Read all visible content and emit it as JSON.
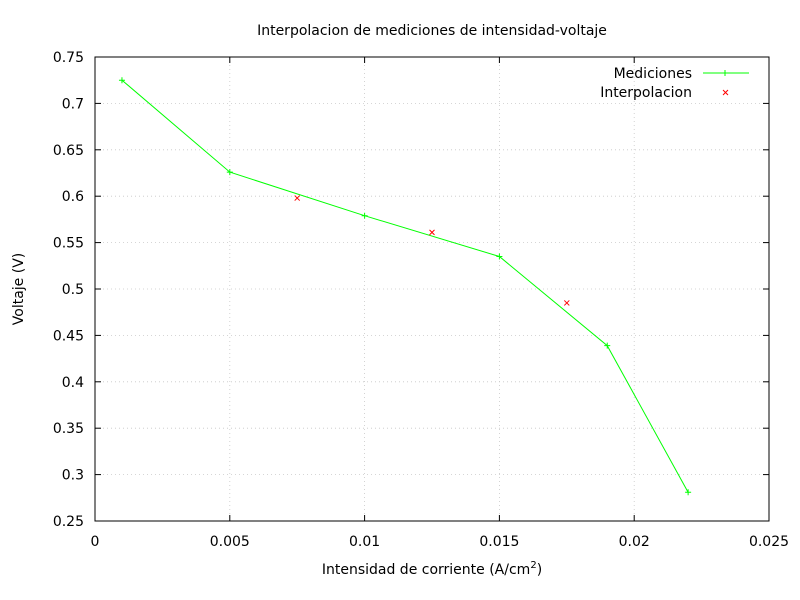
{
  "chart_data": {
    "type": "line",
    "title": "Interpolacion de mediciones de intensidad-voltaje",
    "xlabel": "Intensidad de corriente (A/cm",
    "xlabel_superscript": "2",
    "xlabel_suffix": ")",
    "ylabel": "Voltaje (V)",
    "xlim": [
      0,
      0.025
    ],
    "ylim": [
      0.25,
      0.75
    ],
    "x_ticks": [
      "0",
      "0.005",
      "0.01",
      "0.015",
      "0.02",
      "0.025"
    ],
    "x_tick_values": [
      0,
      0.005,
      0.01,
      0.015,
      0.02,
      0.025
    ],
    "y_ticks": [
      "0.25",
      "0.3",
      "0.35",
      "0.4",
      "0.45",
      "0.5",
      "0.55",
      "0.6",
      "0.65",
      "0.7",
      "0.75"
    ],
    "y_tick_values": [
      0.25,
      0.3,
      0.35,
      0.4,
      0.45,
      0.5,
      0.55,
      0.6,
      0.65,
      0.7,
      0.75
    ],
    "grid": true,
    "legend_position": "top-right",
    "series": [
      {
        "name": "Mediciones",
        "style": "line-plus",
        "color": "#00ff00",
        "points": [
          {
            "x": 0.001,
            "y": 0.725
          },
          {
            "x": 0.005,
            "y": 0.626
          },
          {
            "x": 0.01,
            "y": 0.579
          },
          {
            "x": 0.015,
            "y": 0.535
          },
          {
            "x": 0.019,
            "y": 0.439
          },
          {
            "x": 0.022,
            "y": 0.281
          }
        ]
      },
      {
        "name": "Interpolacion",
        "style": "cross",
        "color": "#ff0000",
        "points": [
          {
            "x": 0.0075,
            "y": 0.598
          },
          {
            "x": 0.0125,
            "y": 0.561
          },
          {
            "x": 0.0175,
            "y": 0.485
          }
        ]
      }
    ]
  }
}
